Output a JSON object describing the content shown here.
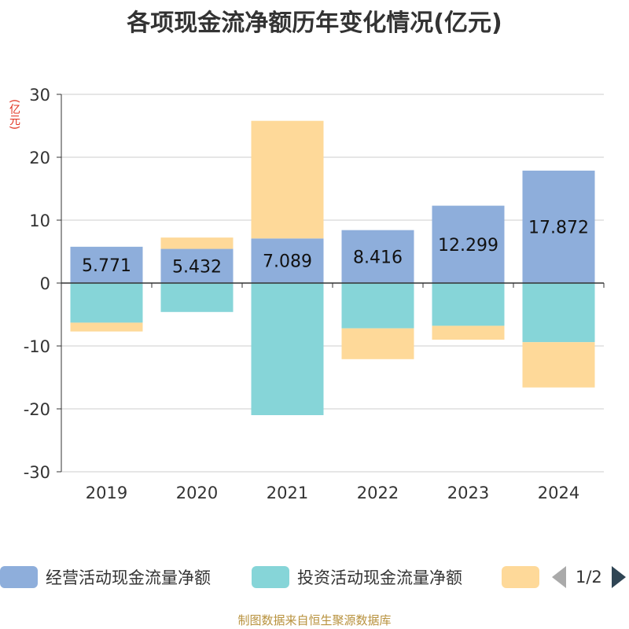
{
  "chart_data": {
    "type": "bar",
    "stacked": true,
    "title": "各项现金流净额历年变化情况(亿元)",
    "ylabel": "(亿元)",
    "xlabel": "",
    "ylim": [
      -30,
      30
    ],
    "yticks": [
      30,
      20,
      10,
      0,
      -10,
      -20,
      -30
    ],
    "categories": [
      "2019",
      "2020",
      "2021",
      "2022",
      "2023",
      "2024"
    ],
    "series": [
      {
        "name": "经营活动现金流量净额",
        "color": "#8eaedb",
        "values": [
          5.771,
          5.432,
          7.089,
          8.416,
          12.299,
          17.872
        ],
        "labels": [
          "5.771",
          "5.432",
          "7.089",
          "8.416",
          "12.299",
          "17.872"
        ]
      },
      {
        "name": "投资活动现金流量净额",
        "color": "#86d5d8",
        "values": [
          -6.3,
          -4.6,
          -21.0,
          -7.2,
          -6.8,
          -9.4
        ]
      },
      {
        "name": "",
        "color": "#fed999",
        "values": [
          -1.4,
          1.8,
          18.7,
          -4.9,
          -2.2,
          -7.2
        ]
      }
    ],
    "legend_position": "bottom",
    "legend_page": "1/2"
  },
  "footer": "制图数据来自恒生聚源数据库"
}
